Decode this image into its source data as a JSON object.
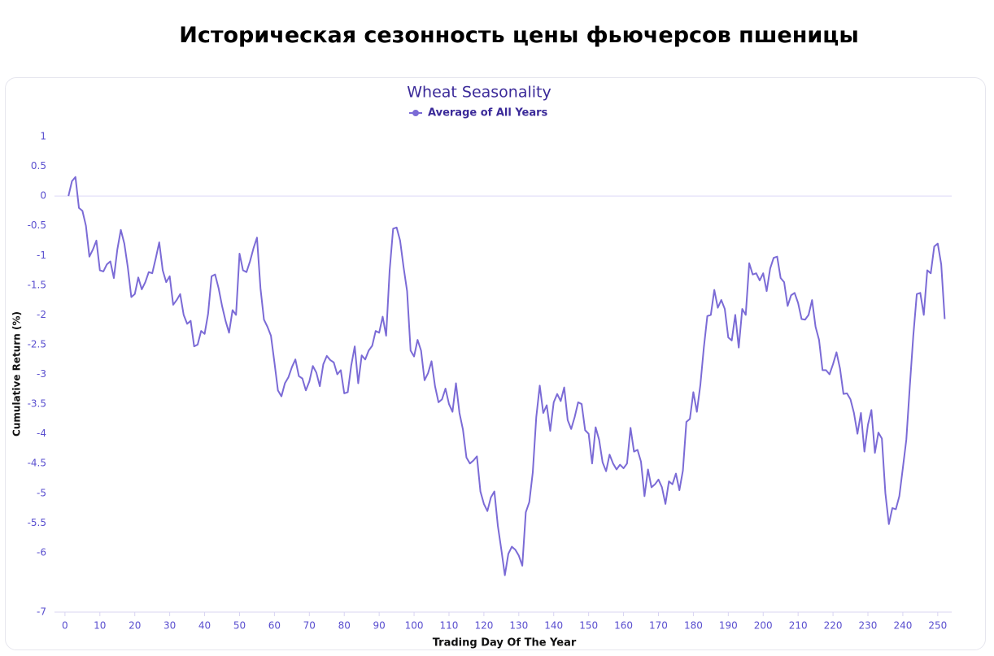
{
  "header": {
    "title": "Историческая сезонность цены фьючерсов  пшеницы"
  },
  "chart_data": {
    "type": "line",
    "title": "Wheat Seasonality",
    "xlabel": "Trading Day Of The Year",
    "ylabel": "Cumulative Return (%)",
    "x": [
      1,
      2,
      3,
      4,
      5,
      6,
      7,
      8,
      9,
      10,
      11,
      12,
      13,
      14,
      15,
      16,
      17,
      18,
      19,
      20,
      21,
      22,
      23,
      24,
      25,
      26,
      27,
      28,
      29,
      30,
      31,
      32,
      33,
      34,
      35,
      36,
      37,
      38,
      39,
      40,
      41,
      42,
      43,
      44,
      45,
      46,
      47,
      48,
      49,
      50,
      51,
      52,
      53,
      54,
      55,
      56,
      57,
      58,
      59,
      60,
      61,
      62,
      63,
      64,
      65,
      66,
      67,
      68,
      69,
      70,
      71,
      72,
      73,
      74,
      75,
      76,
      77,
      78,
      79,
      80,
      81,
      82,
      83,
      84,
      85,
      86,
      87,
      88,
      89,
      90,
      91,
      92,
      93,
      94,
      95,
      96,
      97,
      98,
      99,
      100,
      101,
      102,
      103,
      104,
      105,
      106,
      107,
      108,
      109,
      110,
      111,
      112,
      113,
      114,
      115,
      116,
      117,
      118,
      119,
      120,
      121,
      122,
      123,
      124,
      125,
      126,
      127,
      128,
      129,
      130,
      131,
      132,
      133,
      134,
      135,
      136,
      137,
      138,
      139,
      140,
      141,
      142,
      143,
      144,
      145,
      146,
      147,
      148,
      149,
      150,
      151,
      152,
      153,
      154,
      155,
      156,
      157,
      158,
      159,
      160,
      161,
      162,
      163,
      164,
      165,
      166,
      167,
      168,
      169,
      170,
      171,
      172,
      173,
      174,
      175,
      176,
      177,
      178,
      179,
      180,
      181,
      182,
      183,
      184,
      185,
      186,
      187,
      188,
      189,
      190,
      191,
      192,
      193,
      194,
      195,
      196,
      197,
      198,
      199,
      200,
      201,
      202,
      203,
      204,
      205,
      206,
      207,
      208,
      209,
      210,
      211,
      212,
      213,
      214,
      215,
      216,
      217,
      218,
      219,
      220,
      221,
      222,
      223,
      224,
      225,
      226,
      227,
      228,
      229,
      230,
      231,
      232,
      233,
      234,
      235,
      236,
      237,
      238,
      239,
      240,
      241,
      242,
      243,
      244,
      245,
      246,
      247,
      248,
      249,
      250,
      251,
      252
    ],
    "series": [
      {
        "name": "Average of All Years",
        "color": "#7b6bd6",
        "values": [
          0,
          0.25,
          0.32,
          -0.2,
          -0.25,
          -0.5,
          -1.02,
          -0.9,
          -0.75,
          -1.25,
          -1.27,
          -1.15,
          -1.1,
          -1.38,
          -0.9,
          -0.57,
          -0.8,
          -1.2,
          -1.7,
          -1.65,
          -1.37,
          -1.57,
          -1.45,
          -1.28,
          -1.3,
          -1.05,
          -0.78,
          -1.25,
          -1.45,
          -1.35,
          -1.83,
          -1.75,
          -1.65,
          -2.0,
          -2.15,
          -2.1,
          -2.53,
          -2.5,
          -2.27,
          -2.32,
          -1.98,
          -1.35,
          -1.32,
          -1.55,
          -1.85,
          -2.1,
          -2.3,
          -1.92,
          -2.0,
          -0.97,
          -1.25,
          -1.28,
          -1.1,
          -0.88,
          -0.7,
          -1.55,
          -2.08,
          -2.2,
          -2.35,
          -2.8,
          -3.27,
          -3.37,
          -3.15,
          -3.05,
          -2.88,
          -2.75,
          -3.03,
          -3.07,
          -3.27,
          -3.12,
          -2.86,
          -2.97,
          -3.2,
          -2.83,
          -2.69,
          -2.76,
          -2.8,
          -3.0,
          -2.93,
          -3.32,
          -3.3,
          -2.85,
          -2.53,
          -3.15,
          -2.68,
          -2.75,
          -2.6,
          -2.52,
          -2.27,
          -2.3,
          -2.03,
          -2.35,
          -1.25,
          -0.55,
          -0.53,
          -0.75,
          -1.2,
          -1.6,
          -2.6,
          -2.7,
          -2.42,
          -2.6,
          -3.1,
          -2.98,
          -2.78,
          -3.2,
          -3.47,
          -3.42,
          -3.24,
          -3.5,
          -3.63,
          -3.15,
          -3.65,
          -3.93,
          -4.4,
          -4.5,
          -4.45,
          -4.38,
          -4.97,
          -5.18,
          -5.3,
          -5.07,
          -4.97,
          -5.55,
          -5.95,
          -6.38,
          -6.02,
          -5.9,
          -5.95,
          -6.05,
          -6.22,
          -5.32,
          -5.15,
          -4.65,
          -3.72,
          -3.19,
          -3.65,
          -3.52,
          -3.95,
          -3.47,
          -3.33,
          -3.45,
          -3.22,
          -3.77,
          -3.92,
          -3.72,
          -3.47,
          -3.5,
          -3.94,
          -4.0,
          -4.5,
          -3.89,
          -4.1,
          -4.48,
          -4.63,
          -4.35,
          -4.5,
          -4.6,
          -4.52,
          -4.58,
          -4.5,
          -3.9,
          -4.3,
          -4.27,
          -4.47,
          -5.05,
          -4.6,
          -4.9,
          -4.85,
          -4.77,
          -4.9,
          -5.18,
          -4.8,
          -4.85,
          -4.67,
          -4.95,
          -4.62,
          -3.8,
          -3.75,
          -3.3,
          -3.63,
          -3.18,
          -2.55,
          -2.02,
          -2.0,
          -1.58,
          -1.88,
          -1.75,
          -1.9,
          -2.38,
          -2.43,
          -2.0,
          -2.55,
          -1.9,
          -2.0,
          -1.13,
          -1.32,
          -1.3,
          -1.42,
          -1.3,
          -1.6,
          -1.22,
          -1.04,
          -1.02,
          -1.38,
          -1.45,
          -1.85,
          -1.67,
          -1.63,
          -1.8,
          -2.07,
          -2.08,
          -2.0,
          -1.75,
          -2.2,
          -2.42,
          -2.93,
          -2.93,
          -3.0,
          -2.83,
          -2.63,
          -2.9,
          -3.33,
          -3.32,
          -3.42,
          -3.65,
          -4.0,
          -3.65,
          -4.3,
          -3.85,
          -3.6,
          -4.32,
          -3.98,
          -4.08,
          -5.0,
          -5.52,
          -5.25,
          -5.27,
          -5.05,
          -4.58,
          -4.1,
          -3.2,
          -2.35,
          -1.65,
          -1.63,
          -2.0,
          -1.25,
          -1.3,
          -0.85,
          -0.8,
          -1.15,
          -2.07
        ]
      }
    ],
    "xlim": [
      -3,
      254
    ],
    "xticks": [
      0,
      10,
      20,
      30,
      40,
      50,
      60,
      70,
      80,
      90,
      100,
      110,
      120,
      130,
      140,
      150,
      160,
      170,
      180,
      190,
      200,
      210,
      220,
      230,
      240,
      250
    ],
    "ylim": [
      -7,
      1
    ],
    "yticks": [
      1,
      0.5,
      0,
      -0.5,
      -1,
      -1.5,
      -2,
      -2.5,
      -3,
      -3.5,
      -4,
      -4.5,
      -5,
      -5.5,
      -6,
      -7
    ],
    "grid": false,
    "zeroline": true,
    "legend": "top"
  }
}
